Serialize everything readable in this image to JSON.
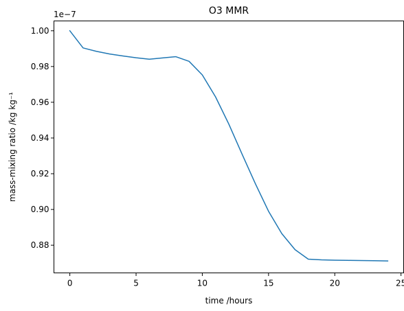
{
  "chart_data": {
    "type": "line",
    "title": "O3 MMR",
    "xlabel": "time /hours",
    "ylabel": "mass-mixing ratio /kg kg⁻¹",
    "y_offset_label": "1e−7",
    "xlim": [
      -1.2,
      25.2
    ],
    "ylim": [
      0.8645,
      1.0055
    ],
    "xticks": [
      0,
      5,
      10,
      15,
      20,
      25
    ],
    "xtick_labels": [
      "0",
      "5",
      "10",
      "15",
      "20",
      "25"
    ],
    "yticks": [
      0.88,
      0.9,
      0.92,
      0.94,
      0.96,
      0.98,
      1.0
    ],
    "ytick_labels": [
      "0.88",
      "0.90",
      "0.92",
      "0.94",
      "0.96",
      "0.98",
      "1.00"
    ],
    "grid": false,
    "series": [
      {
        "color": "#1f77b4",
        "x": [
          0,
          1,
          2,
          3,
          4,
          5,
          6,
          7,
          8,
          9,
          10,
          11,
          12,
          13,
          14,
          15,
          16,
          17,
          18,
          19,
          20,
          21,
          22,
          23,
          24
        ],
        "y": [
          1.0,
          0.9904,
          0.9885,
          0.987,
          0.9859,
          0.9849,
          0.9841,
          0.9848,
          0.9855,
          0.9829,
          0.9753,
          0.963,
          0.9478,
          0.931,
          0.9145,
          0.899,
          0.8865,
          0.8775,
          0.8722,
          0.8718,
          0.8716,
          0.8715,
          0.8714,
          0.8713,
          0.8712
        ]
      }
    ]
  }
}
